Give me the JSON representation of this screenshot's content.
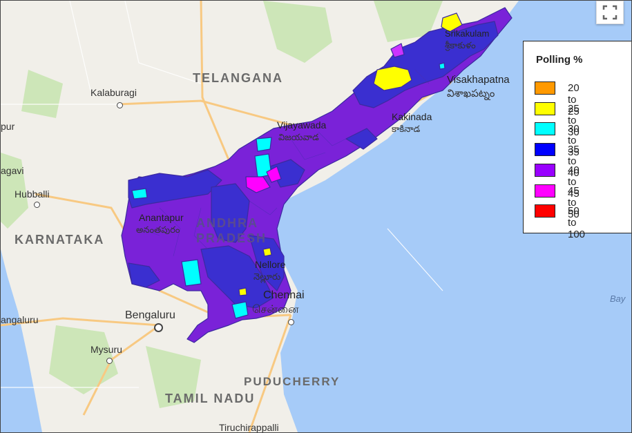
{
  "labels": {
    "telangana": "TELANGANA",
    "karnataka": "KARNATAKA",
    "andhra_line1": "ANDHRA",
    "andhra_line2": "PRADESH",
    "tamil_nadu": "TAMIL NADU",
    "puducherry": "PUDUCHERRY",
    "kalaburagi": "Kalaburagi",
    "pur": "pur",
    "agavi": "agavi",
    "hubballi": "Hubballi",
    "vijayawada": "Vijayawada",
    "vijayawada_te": "విజయవాడ",
    "kakinada": "Kakinada",
    "kakinada_te": "కాకినాడ",
    "visakhapatnam": "Visakhapatna",
    "visakhapatnam_te": "విశాఖపట్నం",
    "srikakulam": "Srikakulam",
    "srikakulam_te": "శ్రీకాకుళం",
    "anantapur": "Anantapur",
    "anantapur_te": "అనంతపురం",
    "nellore": "Nellore",
    "nellore_te": "నెల్లూరు",
    "chennai": "Chennai",
    "chennai_ta": "சென்னை",
    "bengaluru": "Bengaluru",
    "mangaluru": "angaluru",
    "mysuru": "Mysuru",
    "tiruchirappalli": "Tiruchirappalli",
    "bay": "Bay"
  },
  "legend": {
    "title": "Polling %",
    "items": [
      {
        "label": "20 to 25",
        "color": "#ff9900"
      },
      {
        "label": "25 to 30",
        "color": "#ffff00"
      },
      {
        "label": "30 to 35",
        "color": "#00ffff"
      },
      {
        "label": "35 to 40",
        "color": "#0000ff"
      },
      {
        "label": "40 to 45",
        "color": "#9900ff"
      },
      {
        "label": "45 to 50",
        "color": "#ff00ff"
      },
      {
        "label": "50 to 100",
        "color": "#ff0000"
      }
    ]
  },
  "colors": {
    "land": "#f1efe9",
    "sea": "#a6cbf8",
    "park": "#cde6b8",
    "purple_region": "#7a22d8",
    "blue_region": "#3a2fd0",
    "road": "#f8c982"
  },
  "controls": {
    "fullscreen_icon": "fullscreen-icon"
  }
}
